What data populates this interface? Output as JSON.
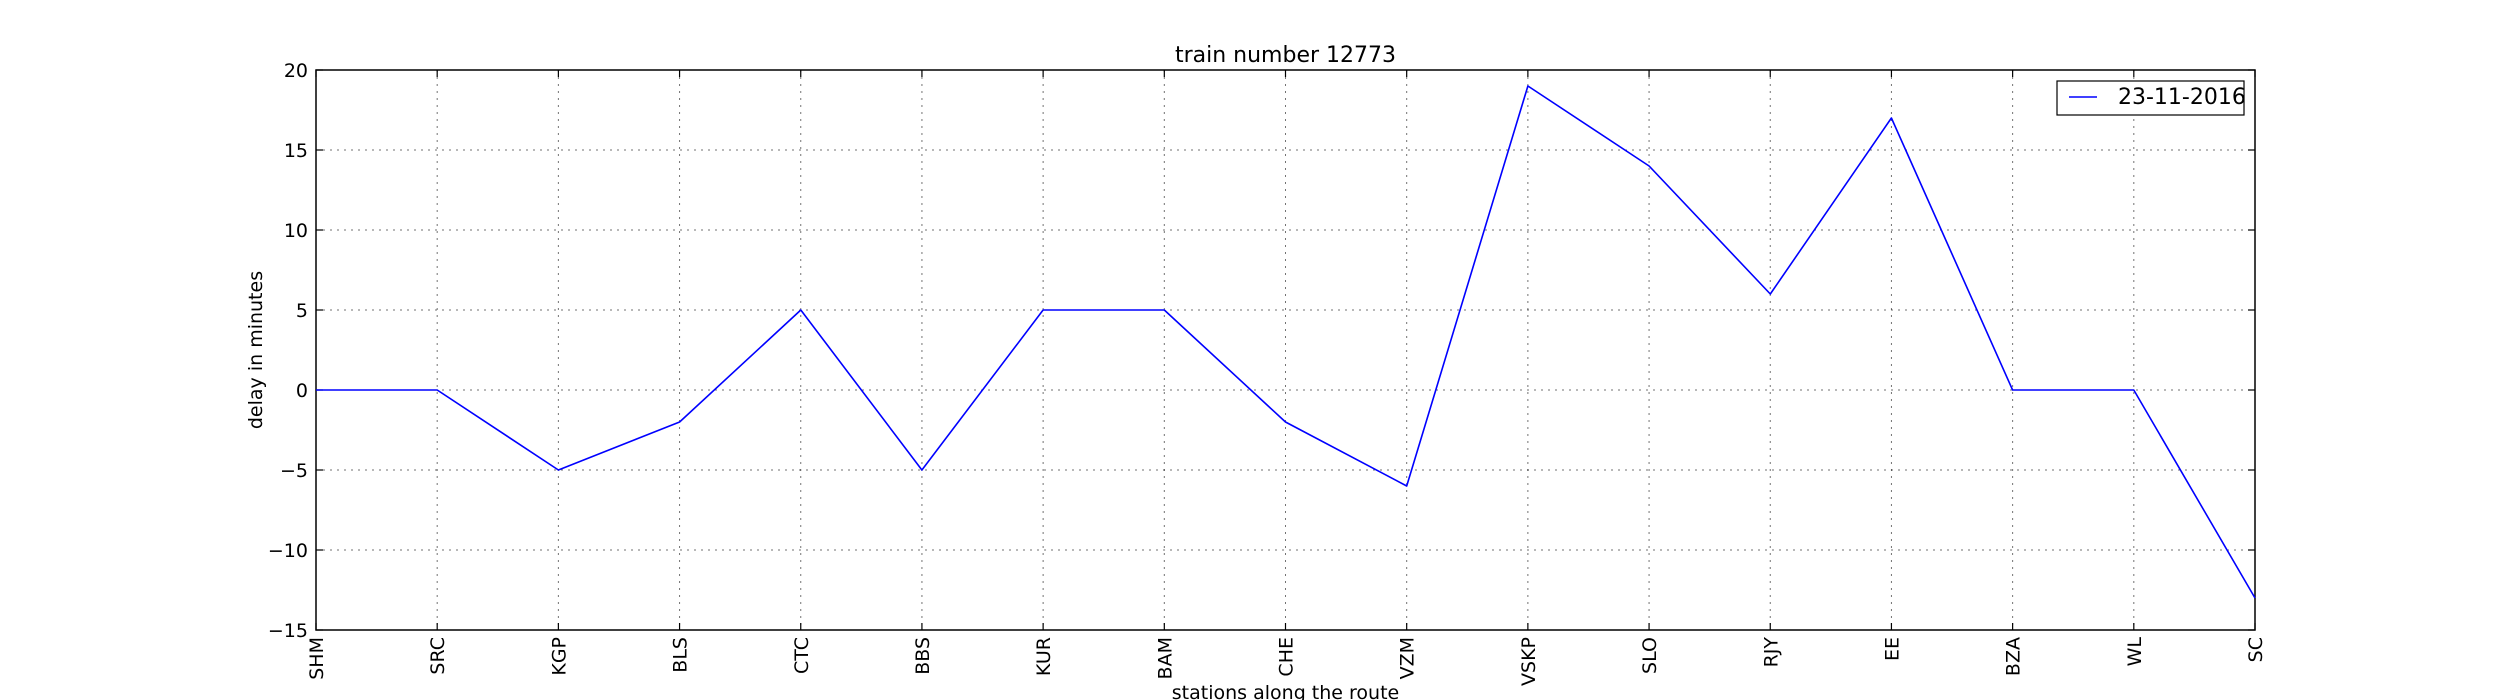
{
  "chart_data": {
    "type": "line",
    "title": "train number 12773",
    "xlabel": "stations along the route",
    "ylabel": "delay in minutes",
    "categories": [
      "SHM",
      "SRC",
      "KGP",
      "BLS",
      "CTC",
      "BBS",
      "KUR",
      "BAM",
      "CHE",
      "VZM",
      "VSKP",
      "SLO",
      "RJY",
      "EE",
      "BZA",
      "WL",
      "SC"
    ],
    "series": [
      {
        "name": "23-11-2016",
        "color": "#0000ff",
        "values": [
          0,
          0,
          -5,
          -2,
          5,
          -5,
          5,
          5,
          -2,
          -6,
          19,
          14,
          6,
          17,
          0,
          0,
          -13
        ]
      }
    ],
    "ylim": [
      -15,
      20
    ],
    "yticks": [
      -15,
      -10,
      -5,
      0,
      5,
      10,
      15,
      20
    ],
    "ytick_labels": [
      "−15",
      "−10",
      "−5",
      "0",
      "5",
      "10",
      "15",
      "20"
    ],
    "grid": true,
    "legend_position": "top-right"
  }
}
